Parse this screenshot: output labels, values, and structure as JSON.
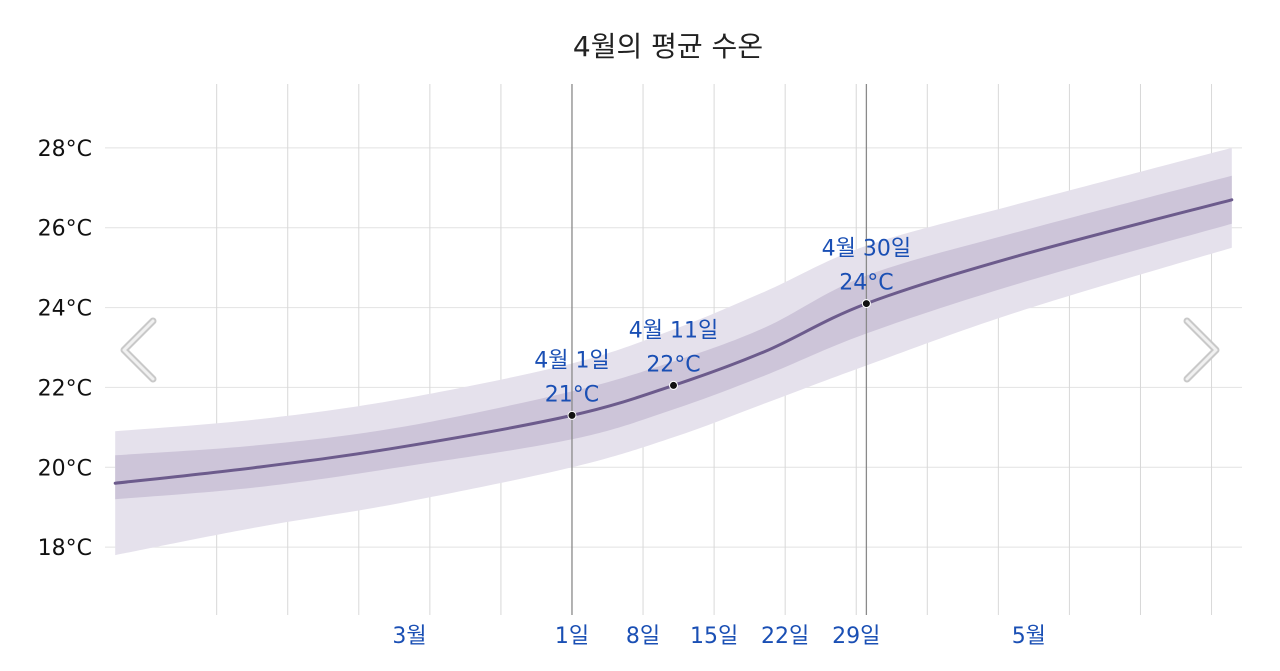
{
  "chart_data": {
    "type": "line",
    "title": "4월의 평균 수온",
    "y_unit": "°C",
    "ylim": [
      16.3,
      29.6
    ],
    "y_ticks": [
      "18°C",
      "20°C",
      "22°C",
      "24°C",
      "26°C",
      "28°C"
    ],
    "y_tick_values": [
      18,
      20,
      22,
      24,
      26,
      28
    ],
    "x_range": [
      "2024-02-15",
      "2024-06-06"
    ],
    "x_tick_labels": [
      "3월",
      "1일",
      "8일",
      "15일",
      "22일",
      "29일",
      "5월"
    ],
    "x_tick_dates": [
      "2024-03-16",
      "2024-04-01",
      "2024-04-08",
      "2024-04-15",
      "2024-04-22",
      "2024-04-29",
      "2024-05-16"
    ],
    "vertical_gridlines": [
      "2024-02-26",
      "2024-03-04",
      "2024-03-11",
      "2024-03-18",
      "2024-03-25",
      "2024-04-01",
      "2024-04-08",
      "2024-04-15",
      "2024-04-22",
      "2024-04-29",
      "2024-05-06",
      "2024-05-13",
      "2024-05-20",
      "2024-05-27",
      "2024-06-03"
    ],
    "month_markers": [
      "2024-04-01",
      "2024-04-30"
    ],
    "grid": true,
    "colors": {
      "mean_line": "#6c5b8c",
      "inner_band": "#c9c0d6",
      "outer_band": "#e5e1ec",
      "annotation": "#1a4fb4",
      "marker_line": "#8a8a8a"
    },
    "series": [
      {
        "x": [
          "2024-02-16",
          "2024-03-01",
          "2024-03-15",
          "2024-04-01",
          "2024-04-11",
          "2024-04-20",
          "2024-04-30",
          "2024-05-15",
          "2024-06-05"
        ],
        "mean": [
          19.6,
          20.0,
          20.5,
          21.3,
          22.05,
          22.9,
          24.1,
          25.3,
          26.7
        ],
        "p25": [
          19.2,
          19.5,
          20.0,
          20.7,
          21.45,
          22.3,
          23.35,
          24.6,
          26.1
        ],
        "p75": [
          20.3,
          20.55,
          21.0,
          21.9,
          22.65,
          23.5,
          24.8,
          25.9,
          27.3
        ],
        "p10": [
          17.8,
          18.5,
          19.1,
          20.0,
          20.75,
          21.6,
          22.55,
          23.9,
          25.5
        ],
        "p90": [
          20.9,
          21.2,
          21.7,
          22.6,
          23.45,
          24.4,
          25.55,
          26.6,
          28.0
        ]
      }
    ],
    "annotations": [
      {
        "x": "2024-04-01",
        "y": 21.3,
        "date_label": "4월 1일",
        "value_label": "21°C"
      },
      {
        "x": "2024-04-11",
        "y": 22.05,
        "date_label": "4월 11일",
        "value_label": "22°C"
      },
      {
        "x": "2024-04-30",
        "y": 24.1,
        "date_label": "4월 30일",
        "value_label": "24°C"
      }
    ]
  },
  "navigation": {
    "prev_icon": "chevron-left-icon",
    "next_icon": "chevron-right-icon"
  }
}
